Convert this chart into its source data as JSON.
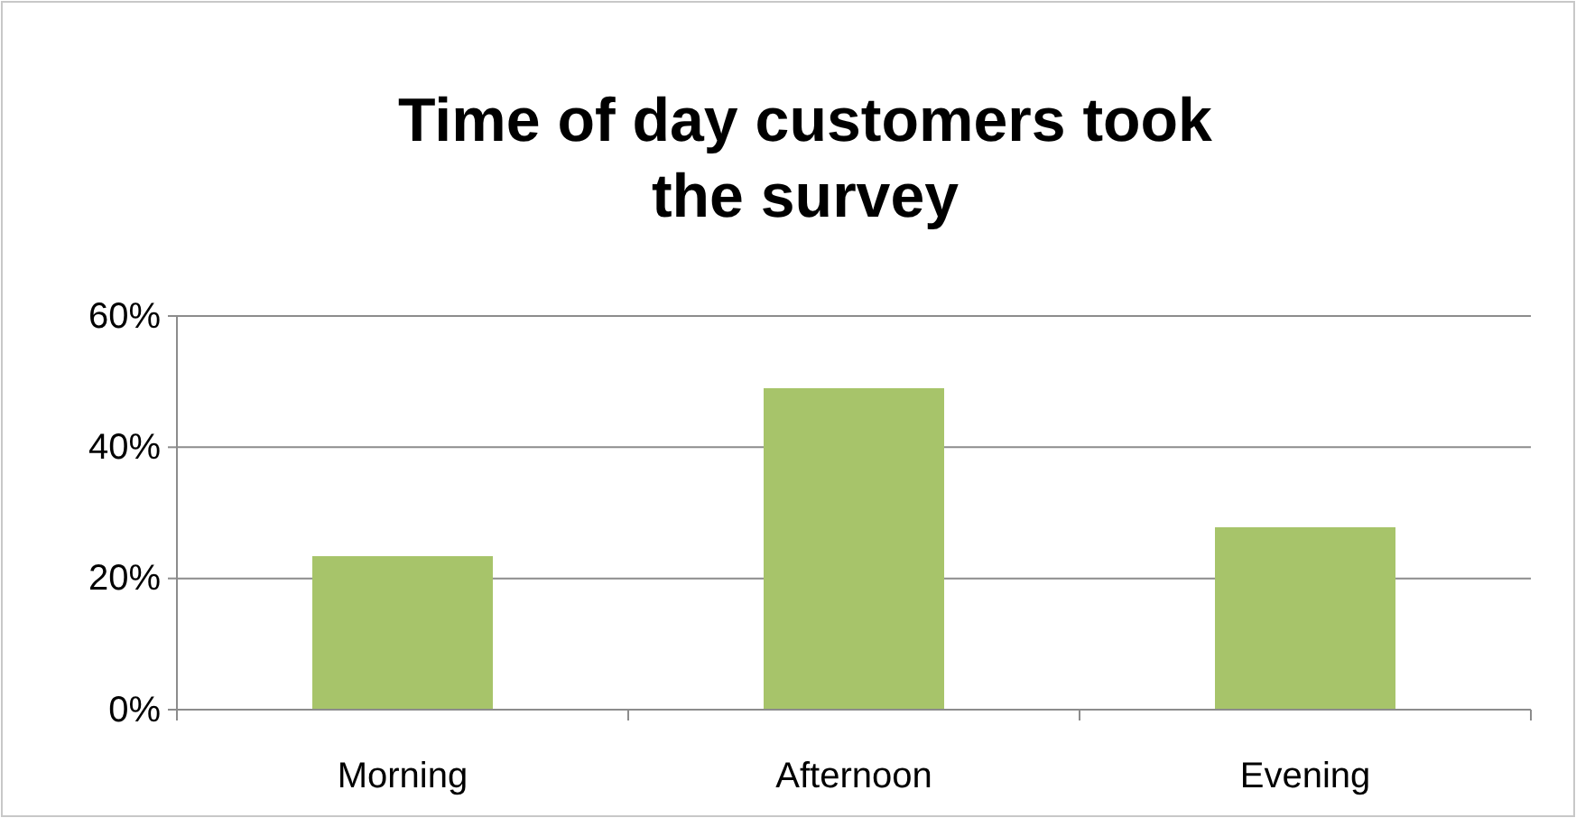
{
  "chart_data": {
    "type": "bar",
    "title": "Time of day customers took the survey",
    "categories": [
      "Morning",
      "Afternoon",
      "Evening"
    ],
    "values": [
      23.4,
      49,
      27.8
    ],
    "color": "#a7c46a",
    "ylim": [
      0,
      60
    ],
    "yticks": [
      {
        "value": 0,
        "label": "0%"
      },
      {
        "value": 20,
        "label": "20%"
      },
      {
        "value": 40,
        "label": "40%"
      },
      {
        "value": 60,
        "label": "60%"
      }
    ],
    "grid": "y"
  }
}
